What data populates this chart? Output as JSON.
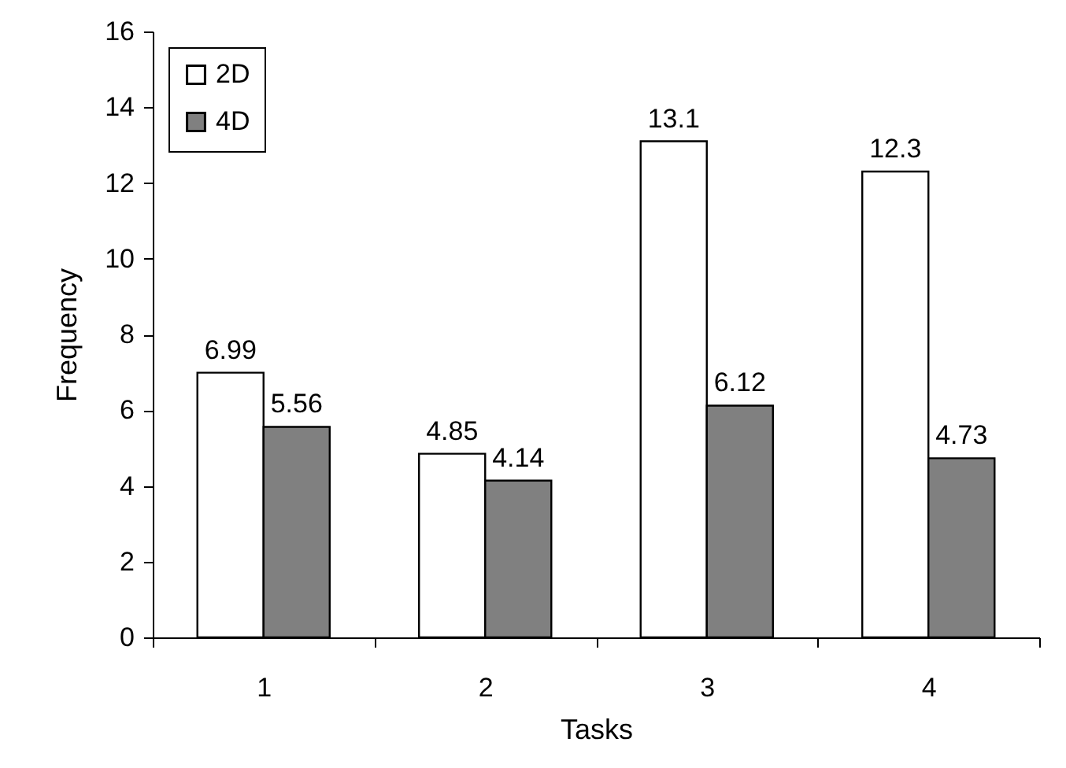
{
  "chart_data": {
    "type": "bar",
    "xlabel": "Tasks",
    "ylabel": "Frequency",
    "categories": [
      "1",
      "2",
      "3",
      "4"
    ],
    "series": [
      {
        "name": "2D",
        "color": "#ffffff",
        "values": [
          6.99,
          4.85,
          13.1,
          12.3
        ]
      },
      {
        "name": "4D",
        "color": "#808080",
        "values": [
          5.56,
          4.14,
          6.12,
          4.73
        ]
      }
    ],
    "ylim": [
      0,
      16
    ],
    "yticks": [
      0,
      2,
      4,
      6,
      8,
      10,
      12,
      14,
      16
    ],
    "data_labels": true,
    "legend": "top left",
    "grid": false
  }
}
